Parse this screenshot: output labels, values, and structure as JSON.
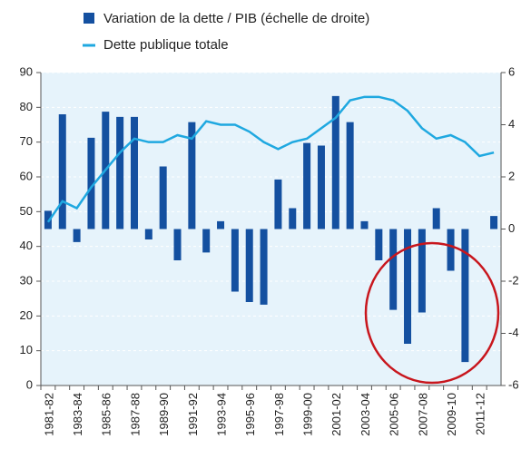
{
  "chart_data": {
    "type": "bar-line",
    "categories": [
      "1981-82",
      null,
      "1983-84",
      null,
      "1985-86",
      null,
      "1987-88",
      null,
      "1989-90",
      null,
      "1991-92",
      null,
      "1993-94",
      null,
      "1995-96",
      null,
      "1997-98",
      null,
      "1999-00",
      null,
      "2001-02",
      null,
      "2003-04",
      null,
      "2005-06",
      null,
      "2007-08",
      null,
      "2009-10",
      null,
      "2011-12",
      null
    ],
    "series": [
      {
        "name": "Variation de la dette / PIB (échelle de droite)",
        "color": "#1450a0",
        "axis": "y2",
        "values": [
          0.7,
          4.4,
          -0.5,
          3.5,
          4.5,
          4.3,
          4.3,
          -0.4,
          2.4,
          -1.2,
          4.1,
          -0.9,
          0.3,
          -2.4,
          -2.8,
          -2.9,
          1.9,
          0.8,
          3.3,
          3.2,
          5.1,
          4.1,
          0.3,
          -1.2,
          -3.1,
          -4.4,
          -3.2,
          0.8,
          -1.6,
          -5.1,
          null,
          0.5
        ]
      },
      {
        "name": "Dette publique totale",
        "color": "#1fa8e0",
        "values": [
          47,
          53,
          51,
          57,
          62,
          67,
          71,
          70,
          70,
          72,
          71,
          76,
          75,
          75,
          73,
          70,
          68,
          70,
          71,
          74,
          77,
          82,
          83,
          83,
          82,
          79,
          74,
          71,
          72,
          70,
          66,
          67
        ]
      }
    ],
    "ylim": [
      0,
      90
    ],
    "yticks": [
      0,
      10,
      20,
      30,
      40,
      50,
      60,
      70,
      80,
      90
    ],
    "y2lim": [
      -6,
      6
    ],
    "y2ticks": [
      -6,
      -4,
      -2,
      0,
      2,
      4,
      6
    ],
    "grid": true
  }
}
